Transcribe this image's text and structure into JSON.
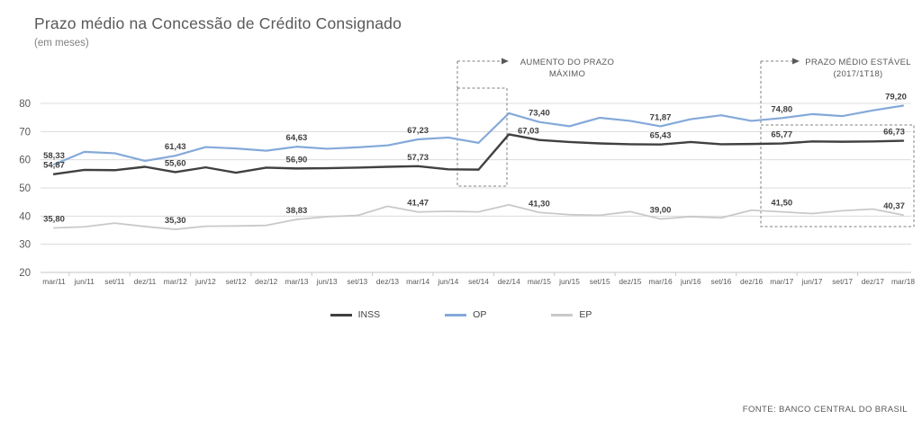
{
  "header": {
    "title": "Prazo médio na Concessão de Crédito Consignado",
    "subtitle": "(em meses)"
  },
  "chart_data": {
    "type": "line",
    "title": "Prazo médio na Concessão de Crédito Consignado",
    "subtitle": "(em meses)",
    "xlabel": "",
    "ylabel": "",
    "ylim": [
      20,
      80
    ],
    "y_ticks": [
      20,
      30,
      40,
      50,
      60,
      70,
      80
    ],
    "grid": "horizontal",
    "legend_position": "bottom",
    "x_labels": [
      "mar/11",
      "jun/11",
      "set/11",
      "dez/11",
      "mar/12",
      "jun/12",
      "set/12",
      "dez/12",
      "mar/13",
      "jun/13",
      "set/13",
      "dez/13",
      "mar/14",
      "jun/14",
      "set/14",
      "dez/14",
      "mar/15",
      "jun/15",
      "set/15",
      "dez/15",
      "mar/16",
      "jun/16",
      "set/16",
      "dez/16",
      "mar/17",
      "jun/17",
      "set/17",
      "dez/17",
      "mar/18"
    ],
    "series": [
      {
        "name": "EP",
        "color": "#c9c9c9",
        "width": 1.8,
        "values": [
          35.8,
          36.2,
          37.5,
          36.3,
          35.3,
          36.4,
          36.5,
          36.7,
          38.83,
          39.8,
          40.2,
          43.5,
          41.47,
          41.7,
          41.5,
          44.0,
          41.3,
          40.5,
          40.3,
          41.6,
          39.0,
          39.8,
          39.4,
          42.1,
          41.5,
          40.9,
          41.9,
          42.5,
          40.37
        ]
      },
      {
        "name": "OP",
        "color": "#84a9d9",
        "width": 2.2,
        "values": [
          58.33,
          62.8,
          62.3,
          59.6,
          61.43,
          64.5,
          64.0,
          63.2,
          64.63,
          63.9,
          64.4,
          65.1,
          67.23,
          67.9,
          66.0,
          76.5,
          73.4,
          71.9,
          74.9,
          73.8,
          71.87,
          74.4,
          75.8,
          73.8,
          74.8,
          76.2,
          75.5,
          77.5,
          79.2
        ]
      },
      {
        "name": "INSS",
        "color": "#404040",
        "width": 2.4,
        "values": [
          54.87,
          56.4,
          56.3,
          57.5,
          55.6,
          57.3,
          55.4,
          57.2,
          56.9,
          57.0,
          57.2,
          57.5,
          57.73,
          56.6,
          56.5,
          69.0,
          67.03,
          66.3,
          65.8,
          65.5,
          65.43,
          66.3,
          65.5,
          65.6,
          65.77,
          66.5,
          66.4,
          66.5,
          66.73
        ]
      }
    ],
    "point_labels": [
      {
        "series": "OP",
        "index": 0,
        "text": "58,33"
      },
      {
        "series": "INSS",
        "index": 0,
        "text": "54,87"
      },
      {
        "series": "EP",
        "index": 0,
        "text": "35,80"
      },
      {
        "series": "OP",
        "index": 4,
        "text": "61,43"
      },
      {
        "series": "INSS",
        "index": 4,
        "text": "55,60"
      },
      {
        "series": "EP",
        "index": 4,
        "text": "35,30"
      },
      {
        "series": "OP",
        "index": 8,
        "text": "64,63"
      },
      {
        "series": "INSS",
        "index": 8,
        "text": "56,90"
      },
      {
        "series": "EP",
        "index": 8,
        "text": "38,83"
      },
      {
        "series": "OP",
        "index": 12,
        "text": "67,23"
      },
      {
        "series": "INSS",
        "index": 12,
        "text": "57,73"
      },
      {
        "series": "EP",
        "index": 12,
        "text": "41,47"
      },
      {
        "series": "OP",
        "index": 16,
        "text": "73,40"
      },
      {
        "series": "INSS",
        "index": 16,
        "text": "67,03",
        "dx": -12
      },
      {
        "series": "EP",
        "index": 16,
        "text": "41,30"
      },
      {
        "series": "OP",
        "index": 20,
        "text": "71,87"
      },
      {
        "series": "INSS",
        "index": 20,
        "text": "65,43"
      },
      {
        "series": "EP",
        "index": 20,
        "text": "39,00"
      },
      {
        "series": "OP",
        "index": 24,
        "text": "74,80"
      },
      {
        "series": "INSS",
        "index": 24,
        "text": "65,77"
      },
      {
        "series": "EP",
        "index": 24,
        "text": "41,50"
      },
      {
        "series": "OP",
        "index": 28,
        "text": "79,20",
        "dx": -8
      },
      {
        "series": "INSS",
        "index": 28,
        "text": "66,73",
        "dx": -10
      },
      {
        "series": "EP",
        "index": 28,
        "text": "40,37",
        "dx": -10
      }
    ],
    "annotations": [
      {
        "id": "aumento-prazo-maximo",
        "lines": [
          "AUMENTO DO PRAZO",
          "MÁXIMO"
        ]
      },
      {
        "id": "prazo-medio-estavel",
        "lines": [
          "PRAZO MÉDIO ESTÁVEL",
          "(2017/1T18)"
        ]
      }
    ]
  },
  "legend": {
    "items": [
      {
        "label": "INSS",
        "color": "#404040"
      },
      {
        "label": "OP",
        "color": "#84a9d9"
      },
      {
        "label": "EP",
        "color": "#c9c9c9"
      }
    ]
  },
  "footer": {
    "source": "FONTE: BANCO CENTRAL DO BRASIL"
  }
}
